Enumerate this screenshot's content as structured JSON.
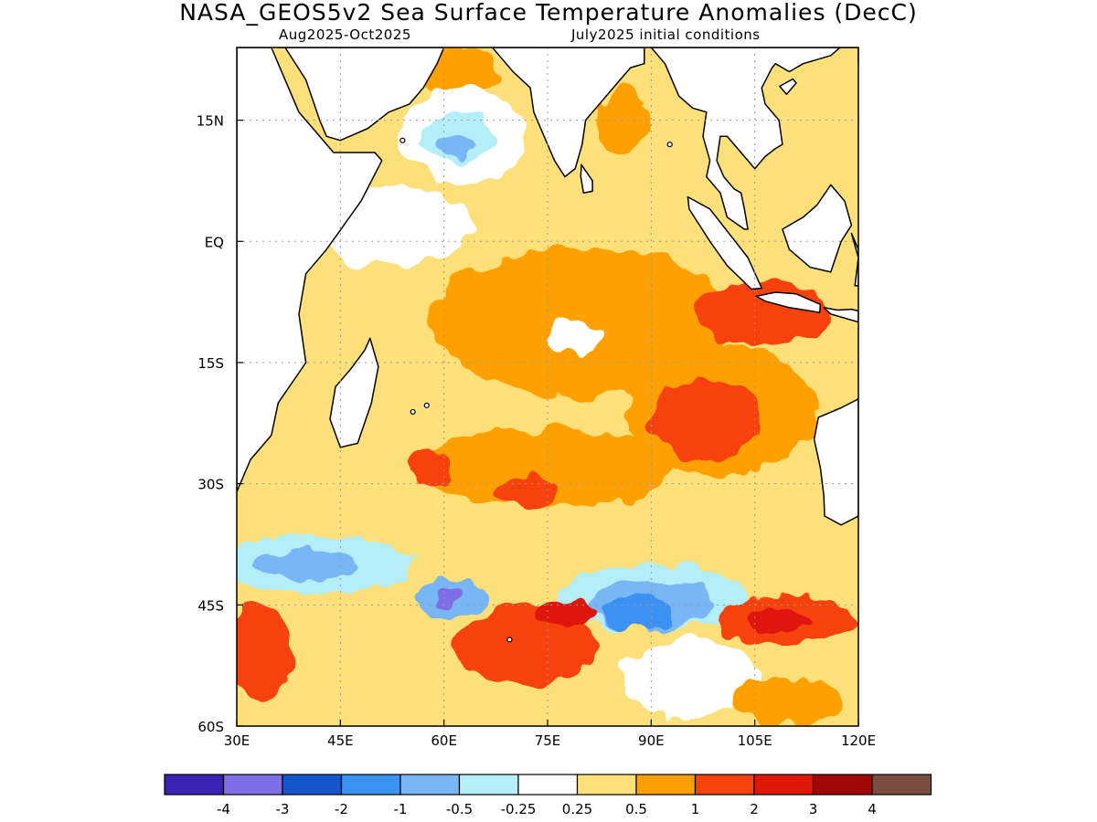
{
  "title": "NASA_GEOS5v2 Sea Surface Temperature Anomalies (DecC)",
  "subtitle_left": "Aug2025-Oct2025",
  "subtitle_right": "July2025 initial conditions",
  "map": {
    "lon_range": [
      30,
      120
    ],
    "lat_range": [
      -60,
      24
    ],
    "lon_ticks": [
      {
        "value": 30,
        "label": "30E"
      },
      {
        "value": 45,
        "label": "45E"
      },
      {
        "value": 60,
        "label": "60E"
      },
      {
        "value": 75,
        "label": "75E"
      },
      {
        "value": 90,
        "label": "90E"
      },
      {
        "value": 105,
        "label": "105E"
      },
      {
        "value": 120,
        "label": "120E"
      }
    ],
    "lat_ticks": [
      {
        "value": 15,
        "label": "15N"
      },
      {
        "value": 0,
        "label": "EQ"
      },
      {
        "value": -15,
        "label": "15S"
      },
      {
        "value": -30,
        "label": "30S"
      },
      {
        "value": -45,
        "label": "45S"
      },
      {
        "value": -60,
        "label": "60S"
      }
    ],
    "grid": true
  },
  "colorbar": {
    "colors": [
      "#3a23b4",
      "#7f6de6",
      "#1656cc",
      "#3a92f2",
      "#78b6f6",
      "#b4eef8",
      "#ffffff",
      "#fee07a",
      "#fda006",
      "#f7420e",
      "#de1707",
      "#a20707",
      "#7a4d41"
    ],
    "labels": [
      "-4",
      "-3",
      "-2",
      "-1",
      "-0.5",
      "-0.25",
      "0.25",
      "0.5",
      "1",
      "2",
      "3",
      "4"
    ]
  },
  "colors": {
    "ocean_default": "#fee07a",
    "land": "#ffffff",
    "coast": "#000000",
    "grid": "#9a9a9a"
  },
  "features": [
    {
      "name": "north-arabian-sea-warm",
      "lon": 62,
      "lat": 21,
      "rx": 6,
      "ry": 3,
      "class": 8
    },
    {
      "name": "arabian-sea-white",
      "lon": 63,
      "lat": 13,
      "rx": 9,
      "ry": 6,
      "class": 6
    },
    {
      "name": "arabian-sea-cool",
      "lon": 62,
      "lat": 13,
      "rx": 5,
      "ry": 3,
      "class": 5
    },
    {
      "name": "arabian-sea-cool-core",
      "lon": 62,
      "lat": 12,
      "rx": 2.5,
      "ry": 1.5,
      "class": 4
    },
    {
      "name": "bay-of-bengal-warm",
      "lon": 86,
      "lat": 15,
      "rx": 4,
      "ry": 4,
      "class": 8
    },
    {
      "name": "equatorial-white",
      "lon": 52,
      "lat": 2,
      "rx": 12,
      "ry": 5,
      "class": 6
    },
    {
      "name": "central-io-warm",
      "lon": 80,
      "lat": -10,
      "rx": 22,
      "ry": 9,
      "class": 8
    },
    {
      "name": "central-io-white-patch",
      "lon": 79,
      "lat": -12,
      "rx": 4,
      "ry": 2,
      "class": 6
    },
    {
      "name": "java-warm-strong",
      "lon": 106,
      "lat": -9,
      "rx": 10,
      "ry": 4,
      "class": 9
    },
    {
      "name": "east-io-warm",
      "lon": 100,
      "lat": -21,
      "rx": 14,
      "ry": 8,
      "class": 8
    },
    {
      "name": "east-io-warm-strong",
      "lon": 98,
      "lat": -22,
      "rx": 8,
      "ry": 5,
      "class": 9
    },
    {
      "name": "south-io-warm",
      "lon": 75,
      "lat": -28,
      "rx": 18,
      "ry": 5,
      "class": 8
    },
    {
      "name": "south-io-strong-1",
      "lon": 72,
      "lat": -31,
      "rx": 5,
      "ry": 2,
      "class": 9
    },
    {
      "name": "south-io-strong-2",
      "lon": 58,
      "lat": -28,
      "rx": 3,
      "ry": 2,
      "class": 9
    },
    {
      "name": "southwest-cool-band",
      "lon": 42,
      "lat": -40,
      "rx": 14,
      "ry": 3.5,
      "class": 5
    },
    {
      "name": "southwest-cool-core",
      "lon": 40,
      "lat": -40,
      "rx": 7,
      "ry": 2,
      "class": 4
    },
    {
      "name": "south-cool-band",
      "lon": 90,
      "lat": -44,
      "rx": 14,
      "ry": 4,
      "class": 5
    },
    {
      "name": "south-cool-band-2",
      "lon": 90,
      "lat": -45,
      "rx": 9,
      "ry": 3,
      "class": 4
    },
    {
      "name": "south-cool-core",
      "lon": 88,
      "lat": -46,
      "rx": 5,
      "ry": 2,
      "class": 3
    },
    {
      "name": "kerguelen-cool",
      "lon": 61,
      "lat": -44,
      "rx": 5,
      "ry": 2.5,
      "class": 4
    },
    {
      "name": "kerguelen-cool-core",
      "lon": 61,
      "lat": -44,
      "rx": 2,
      "ry": 1,
      "class": 1
    },
    {
      "name": "south-warm-band",
      "lon": 72,
      "lat": -50,
      "rx": 10,
      "ry": 5,
      "class": 9
    },
    {
      "name": "south-warm-core",
      "lon": 78,
      "lat": -46,
      "rx": 4,
      "ry": 1.5,
      "class": 10
    },
    {
      "name": "southeast-warm",
      "lon": 110,
      "lat": -47,
      "rx": 10,
      "ry": 3,
      "class": 9
    },
    {
      "name": "southeast-warm-core",
      "lon": 108,
      "lat": -47,
      "rx": 5,
      "ry": 1.5,
      "class": 10
    },
    {
      "name": "southwest-warm",
      "lon": 33,
      "lat": -51,
      "rx": 5,
      "ry": 6,
      "class": 9
    },
    {
      "name": "south-central-white",
      "lon": 96,
      "lat": -54,
      "rx": 10,
      "ry": 5,
      "class": 6
    },
    {
      "name": "southern-warm-bottom",
      "lon": 110,
      "lat": -57,
      "rx": 8,
      "ry": 3,
      "class": 8
    }
  ],
  "land": [
    {
      "name": "africa",
      "points": [
        [
          30,
          24
        ],
        [
          35,
          24
        ],
        [
          37,
          20
        ],
        [
          39,
          16
        ],
        [
          42,
          13
        ],
        [
          44,
          11
        ],
        [
          50,
          11
        ],
        [
          51,
          10
        ],
        [
          48,
          5
        ],
        [
          43,
          -1
        ],
        [
          40,
          -4
        ],
        [
          39,
          -9
        ],
        [
          40,
          -15
        ],
        [
          36,
          -20
        ],
        [
          35,
          -24
        ],
        [
          32,
          -27
        ],
        [
          30,
          -31
        ]
      ]
    },
    {
      "name": "arabia",
      "points": [
        [
          36,
          24
        ],
        [
          37,
          24
        ],
        [
          40,
          20
        ],
        [
          42,
          15
        ],
        [
          43,
          13
        ],
        [
          45,
          12.5
        ],
        [
          49,
          14
        ],
        [
          52,
          16
        ],
        [
          55,
          17
        ],
        [
          57,
          19
        ],
        [
          59,
          22
        ],
        [
          60,
          24
        ]
      ]
    },
    {
      "name": "india",
      "points": [
        [
          67,
          24
        ],
        [
          68,
          23
        ],
        [
          70,
          21
        ],
        [
          72.5,
          19
        ],
        [
          73,
          16
        ],
        [
          74.5,
          13
        ],
        [
          76,
          10
        ],
        [
          77.5,
          8
        ],
        [
          79,
          9
        ],
        [
          80,
          12
        ],
        [
          80.5,
          15
        ],
        [
          82,
          16.5
        ],
        [
          85,
          19.5
        ],
        [
          87,
          21.5
        ],
        [
          89,
          22
        ],
        [
          89,
          24
        ]
      ]
    },
    {
      "name": "burma-malay",
      "points": [
        [
          90,
          24
        ],
        [
          92,
          22
        ],
        [
          94,
          18
        ],
        [
          96,
          16.5
        ],
        [
          98,
          16
        ],
        [
          97.5,
          13
        ],
        [
          98.5,
          10
        ],
        [
          98,
          8
        ],
        [
          100,
          6
        ],
        [
          101,
          3
        ],
        [
          103.5,
          1.5
        ],
        [
          104,
          1.5
        ],
        [
          103.5,
          4
        ],
        [
          103,
          6
        ],
        [
          102,
          6.5
        ],
        [
          100.5,
          8
        ],
        [
          99.5,
          10
        ],
        [
          100,
          13
        ],
        [
          101,
          13
        ],
        [
          103,
          11
        ],
        [
          105,
          9
        ],
        [
          106.5,
          10.5
        ],
        [
          108,
          11.5
        ],
        [
          109,
          12
        ],
        [
          108.5,
          15
        ],
        [
          106.5,
          17
        ],
        [
          106,
          19
        ],
        [
          107.5,
          21.5
        ],
        [
          108,
          22
        ],
        [
          110,
          21
        ],
        [
          112,
          22
        ],
        [
          116,
          23
        ],
        [
          118,
          24.5
        ],
        [
          120,
          24
        ]
      ]
    },
    {
      "name": "madagascar",
      "points": [
        [
          49.3,
          -12
        ],
        [
          50.5,
          -15.5
        ],
        [
          49.5,
          -20
        ],
        [
          47.5,
          -25
        ],
        [
          45,
          -25.5
        ],
        [
          43.5,
          -22
        ],
        [
          44.3,
          -18
        ],
        [
          46.5,
          -15.8
        ],
        [
          48.5,
          -13.5
        ]
      ]
    },
    {
      "name": "sri-lanka",
      "points": [
        [
          79.9,
          9.5
        ],
        [
          81.5,
          7.5
        ],
        [
          81.5,
          6.2
        ],
        [
          80.2,
          6
        ],
        [
          79.8,
          8
        ]
      ]
    },
    {
      "name": "sumatra",
      "points": [
        [
          95.3,
          5.5
        ],
        [
          98.5,
          4
        ],
        [
          104,
          -2
        ],
        [
          106,
          -5.8
        ],
        [
          104.5,
          -5.9
        ],
        [
          101,
          -3
        ],
        [
          98.5,
          0
        ],
        [
          95.5,
          4
        ]
      ]
    },
    {
      "name": "java",
      "points": [
        [
          105.2,
          -6.8
        ],
        [
          108,
          -6.3
        ],
        [
          111,
          -6.5
        ],
        [
          114.5,
          -7.8
        ],
        [
          114.4,
          -8.8
        ],
        [
          110,
          -8.2
        ],
        [
          106.5,
          -7.4
        ]
      ]
    },
    {
      "name": "borneo",
      "points": [
        [
          109,
          1.5
        ],
        [
          110,
          -1
        ],
        [
          113,
          -3.2
        ],
        [
          116,
          -3.8
        ],
        [
          117.5,
          0
        ],
        [
          119,
          2
        ],
        [
          118,
          5
        ],
        [
          116,
          7
        ],
        [
          114,
          4.5
        ],
        [
          112,
          3
        ],
        [
          110,
          2
        ]
      ]
    },
    {
      "name": "sulawesi",
      "points": [
        [
          119,
          1
        ],
        [
          120,
          -2
        ],
        [
          119.5,
          -5.5
        ],
        [
          120,
          -5.5
        ],
        [
          120,
          -1
        ]
      ]
    },
    {
      "name": "lesser-sunda",
      "points": [
        [
          115,
          -8.2
        ],
        [
          117,
          -8.5
        ],
        [
          119,
          -8.4
        ],
        [
          120,
          -8.6
        ],
        [
          120,
          -10
        ],
        [
          116,
          -9
        ]
      ]
    },
    {
      "name": "australia",
      "points": [
        [
          120,
          -19.5
        ],
        [
          117.5,
          -20.6
        ],
        [
          114.2,
          -21.8
        ],
        [
          113.6,
          -24.5
        ],
        [
          114.5,
          -28
        ],
        [
          115,
          -31.5
        ],
        [
          115.1,
          -34
        ],
        [
          117.5,
          -35.1
        ],
        [
          120,
          -34
        ]
      ]
    },
    {
      "name": "hainan",
      "points": [
        [
          108.6,
          19.2
        ],
        [
          110.5,
          20.1
        ],
        [
          111,
          19.6
        ],
        [
          109.6,
          18.2
        ]
      ]
    },
    {
      "name": "taiwan",
      "points": [
        [
          120,
          22
        ],
        [
          120,
          24
        ],
        [
          120,
          22
        ]
      ]
    }
  ],
  "small_islands": [
    {
      "name": "socotra",
      "lon": 54,
      "lat": 12.5
    },
    {
      "name": "mauritius",
      "lon": 57.5,
      "lat": -20.3
    },
    {
      "name": "reunion",
      "lon": 55.5,
      "lat": -21.1
    },
    {
      "name": "kerguelen",
      "lon": 69.5,
      "lat": -49.3
    },
    {
      "name": "andamans",
      "lon": 92.7,
      "lat": 12
    }
  ]
}
